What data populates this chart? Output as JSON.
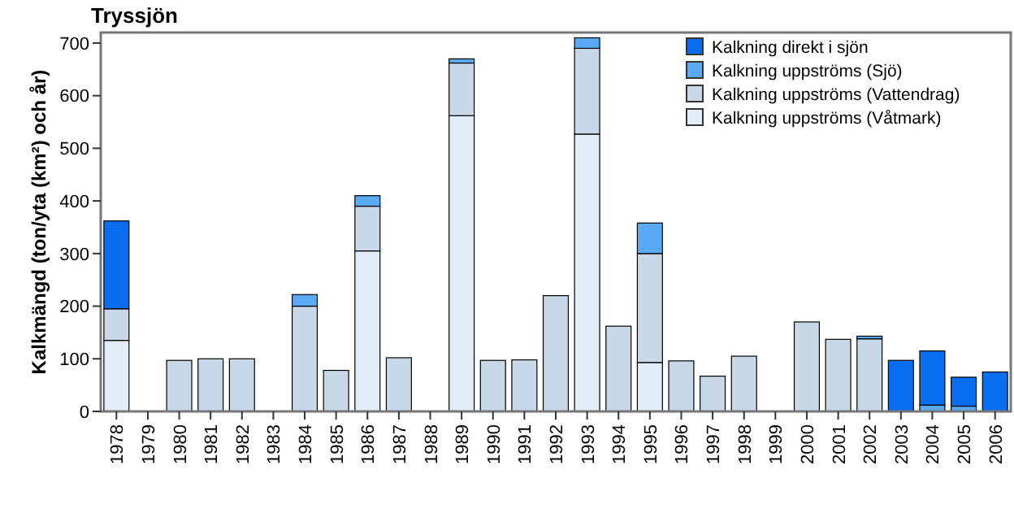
{
  "chart_data": {
    "type": "bar",
    "stacked": true,
    "title": "Tryssjön",
    "ylabel": "Kalkmängd (ton/yta (km²) och år)",
    "categories": [
      "1978",
      "1979",
      "1980",
      "1981",
      "1982",
      "1983",
      "1984",
      "1985",
      "1986",
      "1987",
      "1988",
      "1989",
      "1990",
      "1991",
      "1992",
      "1993",
      "1994",
      "1995",
      "1996",
      "1997",
      "1998",
      "1999",
      "2000",
      "2001",
      "2002",
      "2003",
      "2004",
      "2005",
      "2006"
    ],
    "series": [
      {
        "name": "Kalkning uppströms (Våtmark)",
        "color": "#e3edf8",
        "values": [
          135,
          null,
          null,
          null,
          null,
          null,
          null,
          null,
          305,
          null,
          null,
          562,
          null,
          null,
          null,
          527,
          null,
          93,
          null,
          null,
          null,
          null,
          null,
          null,
          null,
          null,
          null,
          null,
          null
        ]
      },
      {
        "name": "Kalkning uppströms (Vattendrag)",
        "color": "#c8d8e8",
        "values": [
          60,
          null,
          97,
          100,
          100,
          null,
          200,
          78,
          85,
          102,
          null,
          100,
          97,
          98,
          220,
          163,
          162,
          207,
          96,
          67,
          105,
          null,
          170,
          137,
          138,
          null,
          null,
          null,
          null
        ]
      },
      {
        "name": "Kalkning uppströms (Sjö)",
        "color": "#5aaaf5",
        "values": [
          null,
          null,
          null,
          null,
          null,
          null,
          22,
          null,
          20,
          null,
          null,
          8,
          null,
          null,
          null,
          20,
          null,
          58,
          null,
          null,
          null,
          null,
          null,
          null,
          5,
          null,
          12,
          10,
          null
        ]
      },
      {
        "name": "Kalkning direkt i sjön",
        "color": "#0a6ef0",
        "values": [
          167,
          null,
          null,
          null,
          null,
          null,
          null,
          null,
          null,
          null,
          null,
          null,
          null,
          null,
          null,
          null,
          null,
          null,
          null,
          null,
          null,
          null,
          null,
          null,
          null,
          97,
          103,
          55,
          75
        ]
      }
    ],
    "ylim": [
      0,
      720
    ],
    "yticks": [
      0,
      100,
      200,
      300,
      400,
      500,
      600,
      700
    ],
    "grid": false,
    "legend": "top right"
  }
}
